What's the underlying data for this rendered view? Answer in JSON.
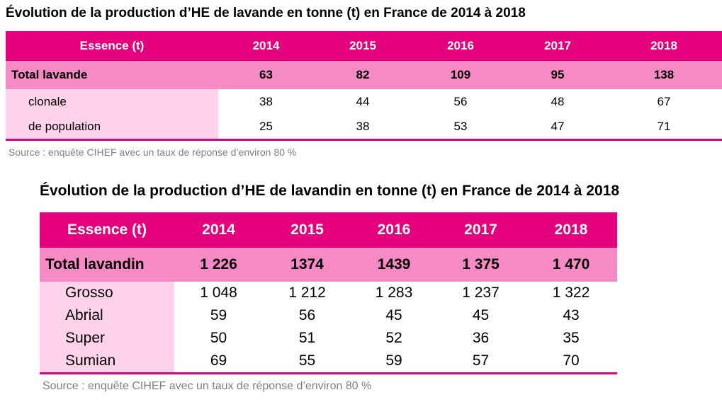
{
  "table1": {
    "title": "Évolution de la production d’HE de lavande en tonne (t) en France de 2014 à 2018",
    "header": [
      "Essence (t)",
      "2014",
      "2015",
      "2016",
      "2017",
      "2018"
    ],
    "total": {
      "label": "Total lavande",
      "values": [
        "63",
        "82",
        "109",
        "95",
        "138"
      ]
    },
    "rows": [
      {
        "label": "clonale",
        "values": [
          "38",
          "44",
          "56",
          "48",
          "67"
        ]
      },
      {
        "label": "de population",
        "values": [
          "25",
          "38",
          "53",
          "47",
          "71"
        ]
      }
    ],
    "source": "Source : enquête CIHEF avec un taux de réponse d’environ 80 %"
  },
  "table2": {
    "title": "Évolution de la production d’HE de lavandin en tonne (t) en France de 2014 à 2018",
    "header": [
      "Essence (t)",
      "2014",
      "2015",
      "2016",
      "2017",
      "2018"
    ],
    "total": {
      "label": "Total lavandin",
      "values": [
        "1 226",
        "1374",
        "1439",
        "1 375",
        "1 470"
      ]
    },
    "rows": [
      {
        "label": "Grosso",
        "values": [
          "1 048",
          "1 212",
          "1 283",
          "1 237",
          "1 322"
        ]
      },
      {
        "label": "Abrial",
        "values": [
          "59",
          "56",
          "45",
          "45",
          "43"
        ]
      },
      {
        "label": "Super",
        "values": [
          "50",
          "51",
          "52",
          "36",
          "35"
        ]
      },
      {
        "label": "Sumian",
        "values": [
          "69",
          "55",
          "59",
          "57",
          "70"
        ]
      }
    ],
    "source": "Source : enquête CIHEF avec un taux de réponse d’environ 80 %"
  },
  "colors": {
    "header_bg": "#e5007d",
    "total_bg": "#f58ac4",
    "row_label_bg": "#fdd2ea",
    "source_text": "#7f7f7f"
  }
}
